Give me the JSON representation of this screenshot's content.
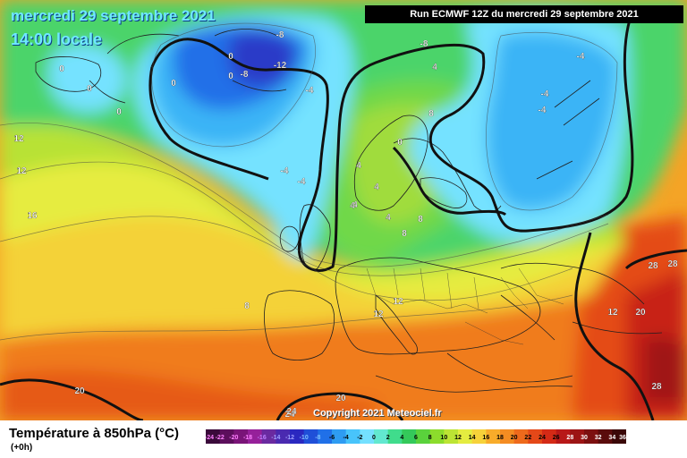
{
  "header": {
    "date": "mercredi 29 septembre 2021",
    "time": "14:00 locale",
    "run": "Run ECMWF 12Z du mercredi 29 septembre 2021"
  },
  "copyright": "Copyright 2021 Meteociel.fr",
  "legend": {
    "title": "Température à 850hPa (°C)",
    "subtitle": "(+0h)",
    "ticks": [
      "-24",
      "-22",
      "-20",
      "-18",
      "-16",
      "-14",
      "-12",
      "-10",
      "-8",
      "-6",
      "-4",
      "-2",
      "0",
      "2",
      "4",
      "6",
      "8",
      "10",
      "12",
      "14",
      "16",
      "18",
      "20",
      "22",
      "24",
      "26",
      "28",
      "30",
      "32",
      "34",
      "36"
    ],
    "colors": [
      "#3a0a3a",
      "#5c0e5c",
      "#7a1478",
      "#96209a",
      "#6a2aa0",
      "#4a2ab0",
      "#2a28c0",
      "#1f4fd8",
      "#2070e8",
      "#2e9cf2",
      "#48c4fb",
      "#74e0ff",
      "#62e8d0",
      "#40dc8c",
      "#34c95a",
      "#5ad23c",
      "#8cdc2c",
      "#bce434",
      "#e4ec40",
      "#f6d23a",
      "#f8ac2a",
      "#f48c22",
      "#ee6a1c",
      "#e44818",
      "#d42a16",
      "#b81818",
      "#9c1414",
      "#7c1010",
      "#5a0c0c",
      "#3a0808"
    ],
    "tick_colors": [
      "#ff80ff",
      "#ff80ff",
      "#ff80ff",
      "#ff80ff",
      "#c080ff",
      "#a0a0ff",
      "#a0a0ff",
      "#80c0ff",
      "#80c0ff",
      "#000000",
      "#000000",
      "#000000",
      "#000000",
      "#000000",
      "#000000",
      "#000000",
      "#000000",
      "#000000",
      "#000000",
      "#000000",
      "#000000",
      "#000000",
      "#000000",
      "#000000",
      "#000000",
      "#000000",
      "#ffffff",
      "#ffffff",
      "#ffffff",
      "#ffffff",
      "#ffffff"
    ]
  },
  "isotherm_labels": [
    {
      "text": "-8",
      "color": "#ffffff"
    },
    {
      "text": "-8",
      "color": "#ffffff"
    },
    {
      "text": "-12",
      "color": "#ffffff"
    },
    {
      "text": "-8",
      "color": "#ffffff"
    },
    {
      "text": "0",
      "color": "#ffffff"
    },
    {
      "text": "0",
      "color": "#ffffff"
    },
    {
      "text": "0",
      "color": "#ffffff"
    },
    {
      "text": "0",
      "color": "#ffffff"
    },
    {
      "text": "0",
      "color": "#ffffff"
    },
    {
      "text": "0",
      "color": "#ffffff"
    },
    {
      "text": "-4",
      "color": "#ffffff"
    },
    {
      "text": "4",
      "color": "#ffffff"
    },
    {
      "text": "-4",
      "color": "#ffffff"
    },
    {
      "text": "-4",
      "color": "#ffffff"
    },
    {
      "text": "-4",
      "color": "#ffffff"
    },
    {
      "text": "-4",
      "color": "#ffffff"
    },
    {
      "text": "-4",
      "color": "#ffffff"
    },
    {
      "text": "8",
      "color": "#ffffff"
    },
    {
      "text": "8",
      "color": "#ffffff"
    },
    {
      "text": "0",
      "color": "#ffffff"
    },
    {
      "text": "4",
      "color": "#ffffff"
    },
    {
      "text": "4",
      "color": "#ffffff"
    },
    {
      "text": "4",
      "color": "#ffffff"
    },
    {
      "text": "4",
      "color": "#ffffff"
    },
    {
      "text": "8",
      "color": "#ffffff"
    },
    {
      "text": "12",
      "color": "#ffffff"
    },
    {
      "text": "12",
      "color": "#ffffff"
    },
    {
      "text": "12",
      "color": "#ffffff"
    },
    {
      "text": "16",
      "color": "#ffffff"
    },
    {
      "text": "8",
      "color": "#ffffff"
    },
    {
      "text": "12",
      "color": "#ffffff"
    },
    {
      "text": "12",
      "color": "#ffffff"
    },
    {
      "text": "20",
      "color": "#ffffff"
    },
    {
      "text": "24",
      "color": "#ffffff"
    },
    {
      "text": "28",
      "color": "#ffffff"
    },
    {
      "text": "28",
      "color": "#ffffff"
    },
    {
      "text": "28",
      "color": "#ffffff"
    },
    {
      "text": "20",
      "color": "#ffffff"
    },
    {
      "text": "20",
      "color": "#ffffff"
    },
    {
      "text": "24",
      "color": "#ffffff"
    },
    {
      "text": "4",
      "color": "#ffffff"
    }
  ]
}
